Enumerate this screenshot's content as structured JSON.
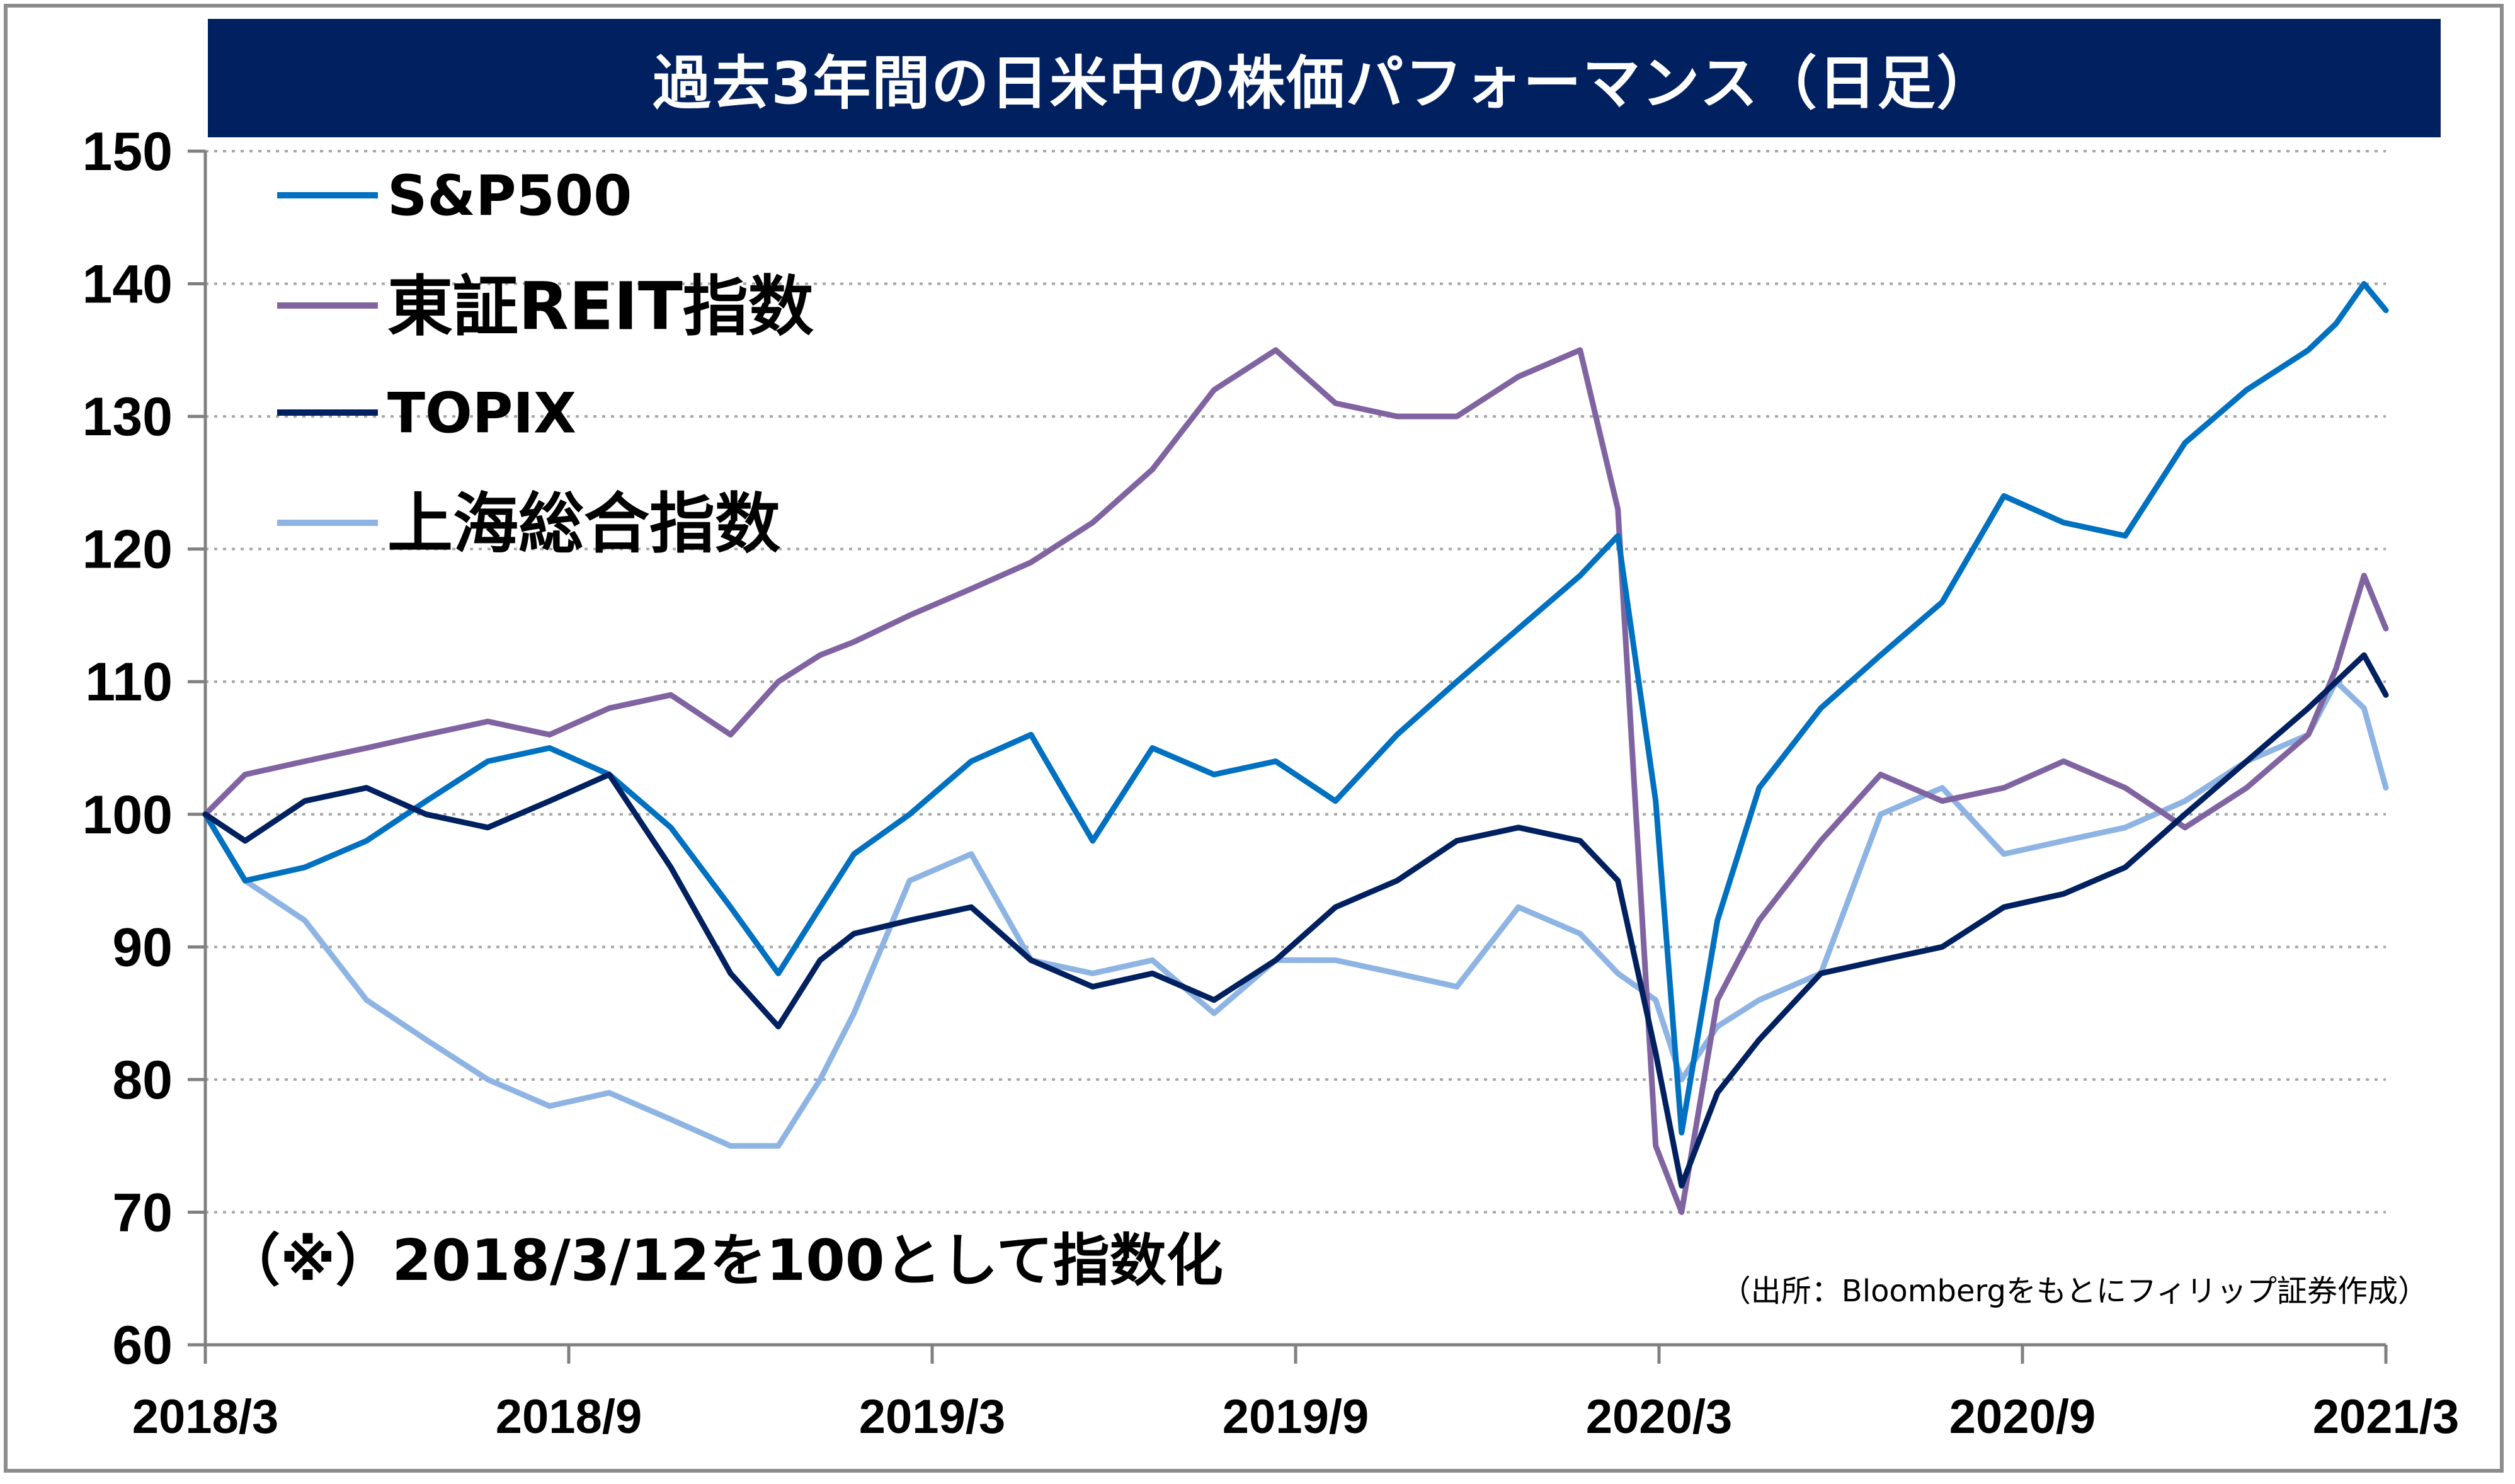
{
  "title": "過去3年間の日米中の株価パフォーマンス（日足）",
  "note": "（※）2018/3/12を100として指数化",
  "source": "（出所：Bloombergをもとにフィリップ証券作成）",
  "colors": {
    "title_bg": "#002060",
    "sp500": "#0070C0",
    "reit": "#8064A2",
    "topix": "#002060",
    "shanghai": "#8EB4E3",
    "grid": "#A6A6A6"
  },
  "chart_data": {
    "type": "line",
    "title": "過去3年間の日米中の株価パフォーマンス（日足）",
    "xlabel": "",
    "ylabel": "",
    "ylim": [
      60,
      150
    ],
    "y_ticks": [
      "60",
      "70",
      "80",
      "90",
      "100",
      "110",
      "120",
      "130",
      "140",
      "150"
    ],
    "x_ticks": [
      "2018/3",
      "2018/9",
      "2019/3",
      "2019/9",
      "2020/3",
      "2020/9",
      "2021/3"
    ],
    "x_range": [
      "2018-03-12",
      "2021-03-12"
    ],
    "grid": "horizontal dotted",
    "legend_position": "top-left",
    "x": [
      "2018-03-12",
      "2018-04-01",
      "2018-05-01",
      "2018-06-01",
      "2018-07-01",
      "2018-08-01",
      "2018-09-01",
      "2018-10-01",
      "2018-11-01",
      "2018-12-01",
      "2018-12-25",
      "2019-01-15",
      "2019-02-01",
      "2019-03-01",
      "2019-04-01",
      "2019-05-01",
      "2019-06-01",
      "2019-07-01",
      "2019-08-01",
      "2019-09-01",
      "2019-10-01",
      "2019-11-01",
      "2019-12-01",
      "2020-01-01",
      "2020-02-01",
      "2020-02-20",
      "2020-03-10",
      "2020-03-23",
      "2020-04-10",
      "2020-05-01",
      "2020-06-01",
      "2020-07-01",
      "2020-08-01",
      "2020-09-01",
      "2020-10-01",
      "2020-11-01",
      "2020-12-01",
      "2021-01-01",
      "2021-02-01",
      "2021-02-15",
      "2021-03-01",
      "2021-03-12"
    ],
    "series": [
      {
        "name": "S&P500",
        "values": [
          100,
          95,
          96,
          98,
          101,
          104,
          105,
          103,
          99,
          93,
          88,
          93,
          97,
          100,
          104,
          106,
          98,
          105,
          103,
          104,
          101,
          106,
          110,
          114,
          118,
          121,
          101,
          76,
          92,
          102,
          108,
          112,
          116,
          124,
          122,
          121,
          128,
          132,
          135,
          137,
          140,
          138
        ]
      },
      {
        "name": "東証REIT指数",
        "values": [
          100,
          103,
          104,
          105,
          106,
          107,
          106,
          108,
          109,
          106,
          110,
          112,
          113,
          115,
          117,
          119,
          122,
          126,
          132,
          135,
          131,
          130,
          130,
          133,
          135,
          123,
          75,
          70,
          86,
          92,
          98,
          103,
          101,
          102,
          104,
          102,
          99,
          102,
          106,
          111,
          118,
          114
        ]
      },
      {
        "name": "TOPIX",
        "values": [
          100,
          98,
          101,
          102,
          100,
          99,
          101,
          103,
          96,
          88,
          84,
          89,
          91,
          92,
          93,
          89,
          87,
          88,
          86,
          89,
          93,
          95,
          98,
          99,
          98,
          95,
          82,
          72,
          79,
          83,
          88,
          89,
          90,
          93,
          94,
          96,
          100,
          104,
          108,
          110,
          112,
          109
        ]
      },
      {
        "name": "上海総合指数",
        "values": [
          100,
          95,
          92,
          86,
          83,
          80,
          78,
          79,
          77,
          75,
          75,
          80,
          85,
          95,
          97,
          89,
          88,
          89,
          85,
          89,
          89,
          88,
          87,
          93,
          91,
          88,
          86,
          80,
          84,
          86,
          88,
          100,
          102,
          97,
          98,
          99,
          101,
          104,
          106,
          110,
          108,
          102
        ]
      }
    ]
  }
}
